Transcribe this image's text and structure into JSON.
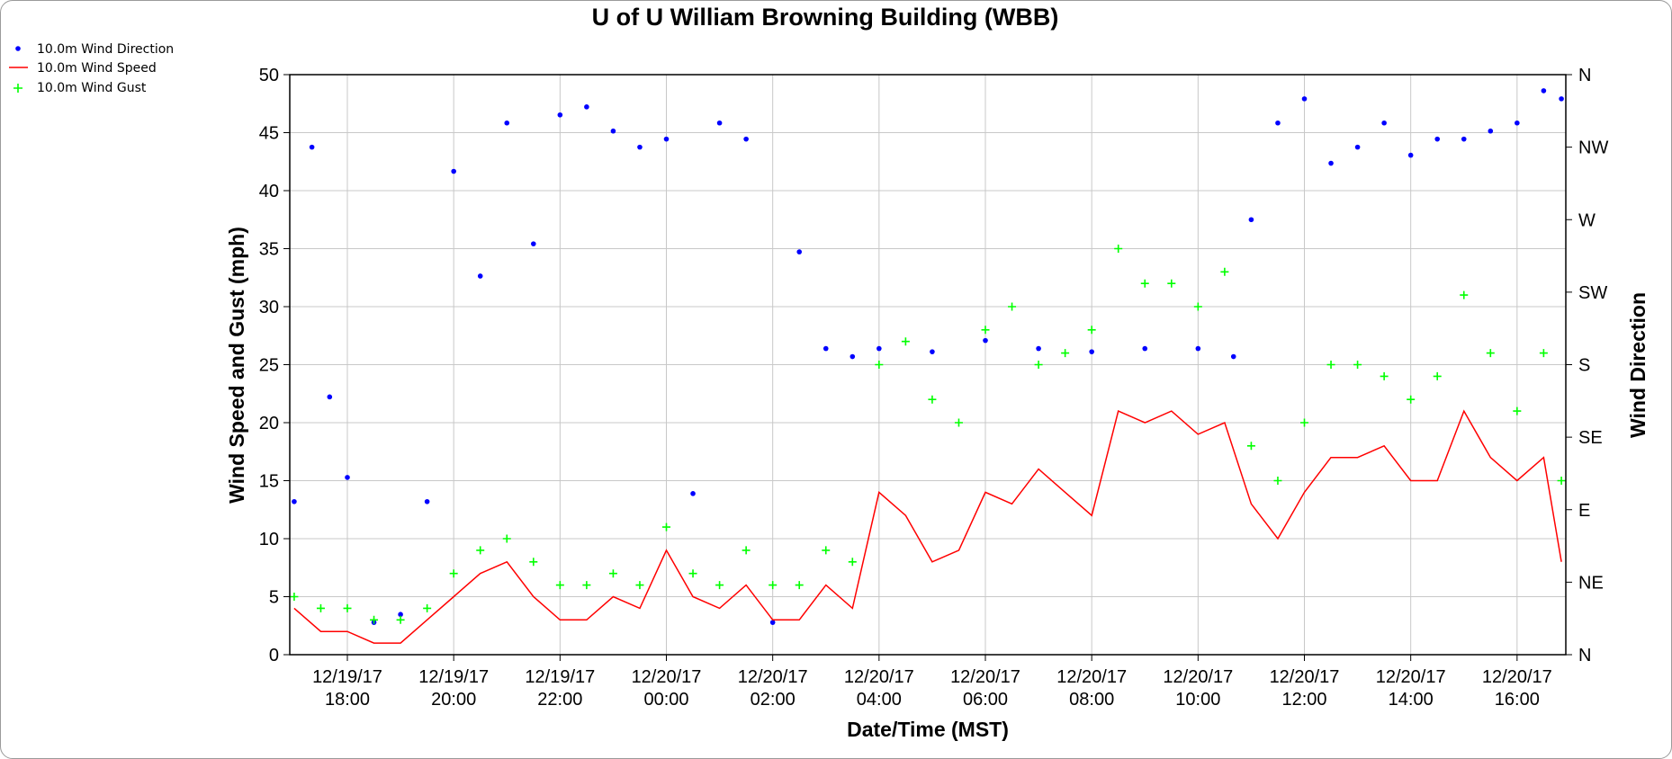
{
  "chart_data": {
    "type": "line",
    "title": "U of U William Browning Building (WBB)",
    "xlabel": "Date/Time (MST)",
    "ylabel": "Wind Speed and Gust (mph)",
    "y2label": "Wind Direction",
    "ylim": [
      0,
      50
    ],
    "y_ticks": [
      "0",
      "5",
      "10",
      "15",
      "20",
      "25",
      "30",
      "35",
      "40",
      "45",
      "50"
    ],
    "y2_ticks": [
      "N",
      "NE",
      "E",
      "SE",
      "S",
      "SW",
      "W",
      "NW",
      "N"
    ],
    "x_ticks": [
      {
        "date": "12/19/17",
        "time": "18:00"
      },
      {
        "date": "12/19/17",
        "time": "20:00"
      },
      {
        "date": "12/19/17",
        "time": "22:00"
      },
      {
        "date": "12/20/17",
        "time": "00:00"
      },
      {
        "date": "12/20/17",
        "time": "02:00"
      },
      {
        "date": "12/20/17",
        "time": "04:00"
      },
      {
        "date": "12/20/17",
        "time": "06:00"
      },
      {
        "date": "12/20/17",
        "time": "08:00"
      },
      {
        "date": "12/20/17",
        "time": "10:00"
      },
      {
        "date": "12/20/17",
        "time": "12:00"
      },
      {
        "date": "12/20/17",
        "time": "14:00"
      },
      {
        "date": "12/20/17",
        "time": "16:00"
      }
    ],
    "xlim": [
      "12/19/17 16:55",
      "12/20/17 16:55"
    ],
    "grid": true,
    "legend_position": "top-left",
    "series": [
      {
        "name": "10.0m Wind Direction",
        "type": "scatter",
        "marker": "dot",
        "color": "#0000ff",
        "axis": "y2",
        "x": [
          "12/19/17 17:00",
          "12/19/17 17:20",
          "12/19/17 17:40",
          "12/19/17 18:00",
          "12/19/17 18:30",
          "12/19/17 19:00",
          "12/19/17 19:30",
          "12/19/17 20:00",
          "12/19/17 20:30",
          "12/19/17 21:00",
          "12/19/17 21:30",
          "12/19/17 22:00",
          "12/19/17 22:30",
          "12/19/17 23:00",
          "12/19/17 23:30",
          "12/20/17 00:00",
          "12/20/17 00:30",
          "12/20/17 01:00",
          "12/20/17 01:30",
          "12/20/17 02:00",
          "12/20/17 02:30",
          "12/20/17 03:00",
          "12/20/17 03:30",
          "12/20/17 04:00",
          "12/20/17 05:00",
          "12/20/17 06:00",
          "12/20/17 07:00",
          "12/20/17 08:00",
          "12/20/17 09:00",
          "12/20/17 10:00",
          "12/20/17 10:40",
          "12/20/17 11:00",
          "12/20/17 11:30",
          "12/20/17 12:00",
          "12/20/17 12:30",
          "12/20/17 13:00",
          "12/20/17 13:30",
          "12/20/17 14:00",
          "12/20/17 14:30",
          "12/20/17 15:00",
          "12/20/17 15:30",
          "12/20/17 16:00",
          "12/20/17 16:30",
          "12/20/17 16:50"
        ],
        "values": [
          95,
          315,
          160,
          110,
          20,
          25,
          95,
          300,
          235,
          330,
          255,
          335,
          340,
          325,
          315,
          320,
          100,
          330,
          320,
          20,
          250,
          190,
          185,
          190,
          188,
          195,
          190,
          188,
          190,
          190,
          185,
          270,
          330,
          345,
          305,
          315,
          330,
          310,
          320,
          320,
          325,
          330,
          350,
          345
        ]
      },
      {
        "name": "10.0m Wind Speed",
        "type": "line",
        "color": "#ff0000",
        "axis": "y",
        "x": [
          "12/19/17 17:00",
          "12/19/17 17:30",
          "12/19/17 18:00",
          "12/19/17 18:30",
          "12/19/17 19:00",
          "12/19/17 19:30",
          "12/19/17 20:00",
          "12/19/17 20:30",
          "12/19/17 21:00",
          "12/19/17 21:30",
          "12/19/17 22:00",
          "12/19/17 22:30",
          "12/19/17 23:00",
          "12/19/17 23:30",
          "12/20/17 00:00",
          "12/20/17 00:30",
          "12/20/17 01:00",
          "12/20/17 01:30",
          "12/20/17 02:00",
          "12/20/17 02:30",
          "12/20/17 03:00",
          "12/20/17 03:30",
          "12/20/17 04:00",
          "12/20/17 04:30",
          "12/20/17 05:00",
          "12/20/17 05:30",
          "12/20/17 06:00",
          "12/20/17 06:30",
          "12/20/17 07:00",
          "12/20/17 07:30",
          "12/20/17 08:00",
          "12/20/17 08:30",
          "12/20/17 09:00",
          "12/20/17 09:30",
          "12/20/17 10:00",
          "12/20/17 10:30",
          "12/20/17 11:00",
          "12/20/17 11:30",
          "12/20/17 12:00",
          "12/20/17 12:30",
          "12/20/17 13:00",
          "12/20/17 13:30",
          "12/20/17 14:00",
          "12/20/17 14:30",
          "12/20/17 15:00",
          "12/20/17 15:30",
          "12/20/17 16:00",
          "12/20/17 16:30",
          "12/20/17 16:50"
        ],
        "values": [
          4,
          2,
          2,
          1,
          1,
          3,
          5,
          7,
          8,
          5,
          3,
          3,
          5,
          4,
          9,
          5,
          4,
          6,
          3,
          3,
          6,
          4,
          14,
          12,
          8,
          9,
          14,
          13,
          16,
          14,
          12,
          21,
          20,
          21,
          19,
          20,
          13,
          10,
          14,
          17,
          17,
          18,
          15,
          15,
          21,
          17,
          15,
          17,
          8
        ]
      },
      {
        "name": "10.0m Wind Gust",
        "type": "scatter",
        "marker": "plus",
        "color": "#00ff00",
        "axis": "y",
        "x": [
          "12/19/17 17:00",
          "12/19/17 17:30",
          "12/19/17 18:00",
          "12/19/17 18:30",
          "12/19/17 19:00",
          "12/19/17 19:30",
          "12/19/17 20:00",
          "12/19/17 20:30",
          "12/19/17 21:00",
          "12/19/17 21:30",
          "12/19/17 22:00",
          "12/19/17 22:30",
          "12/19/17 23:00",
          "12/19/17 23:30",
          "12/20/17 00:00",
          "12/20/17 00:30",
          "12/20/17 01:00",
          "12/20/17 01:30",
          "12/20/17 02:00",
          "12/20/17 02:30",
          "12/20/17 03:00",
          "12/20/17 03:30",
          "12/20/17 04:00",
          "12/20/17 04:30",
          "12/20/17 05:00",
          "12/20/17 05:30",
          "12/20/17 06:00",
          "12/20/17 06:30",
          "12/20/17 07:00",
          "12/20/17 07:30",
          "12/20/17 08:00",
          "12/20/17 08:30",
          "12/20/17 09:00",
          "12/20/17 09:30",
          "12/20/17 10:00",
          "12/20/17 10:30",
          "12/20/17 11:00",
          "12/20/17 11:30",
          "12/20/17 12:00",
          "12/20/17 12:30",
          "12/20/17 13:00",
          "12/20/17 13:30",
          "12/20/17 14:00",
          "12/20/17 14:30",
          "12/20/17 15:00",
          "12/20/17 15:30",
          "12/20/17 16:00",
          "12/20/17 16:30",
          "12/20/17 16:50"
        ],
        "values": [
          5,
          4,
          4,
          3,
          3,
          4,
          7,
          9,
          10,
          8,
          6,
          6,
          7,
          6,
          11,
          7,
          6,
          9,
          6,
          6,
          9,
          8,
          25,
          27,
          22,
          20,
          28,
          30,
          25,
          26,
          28,
          35,
          32,
          32,
          30,
          33,
          18,
          15,
          20,
          25,
          25,
          24,
          22,
          24,
          31,
          26,
          21,
          26,
          15
        ]
      }
    ]
  }
}
